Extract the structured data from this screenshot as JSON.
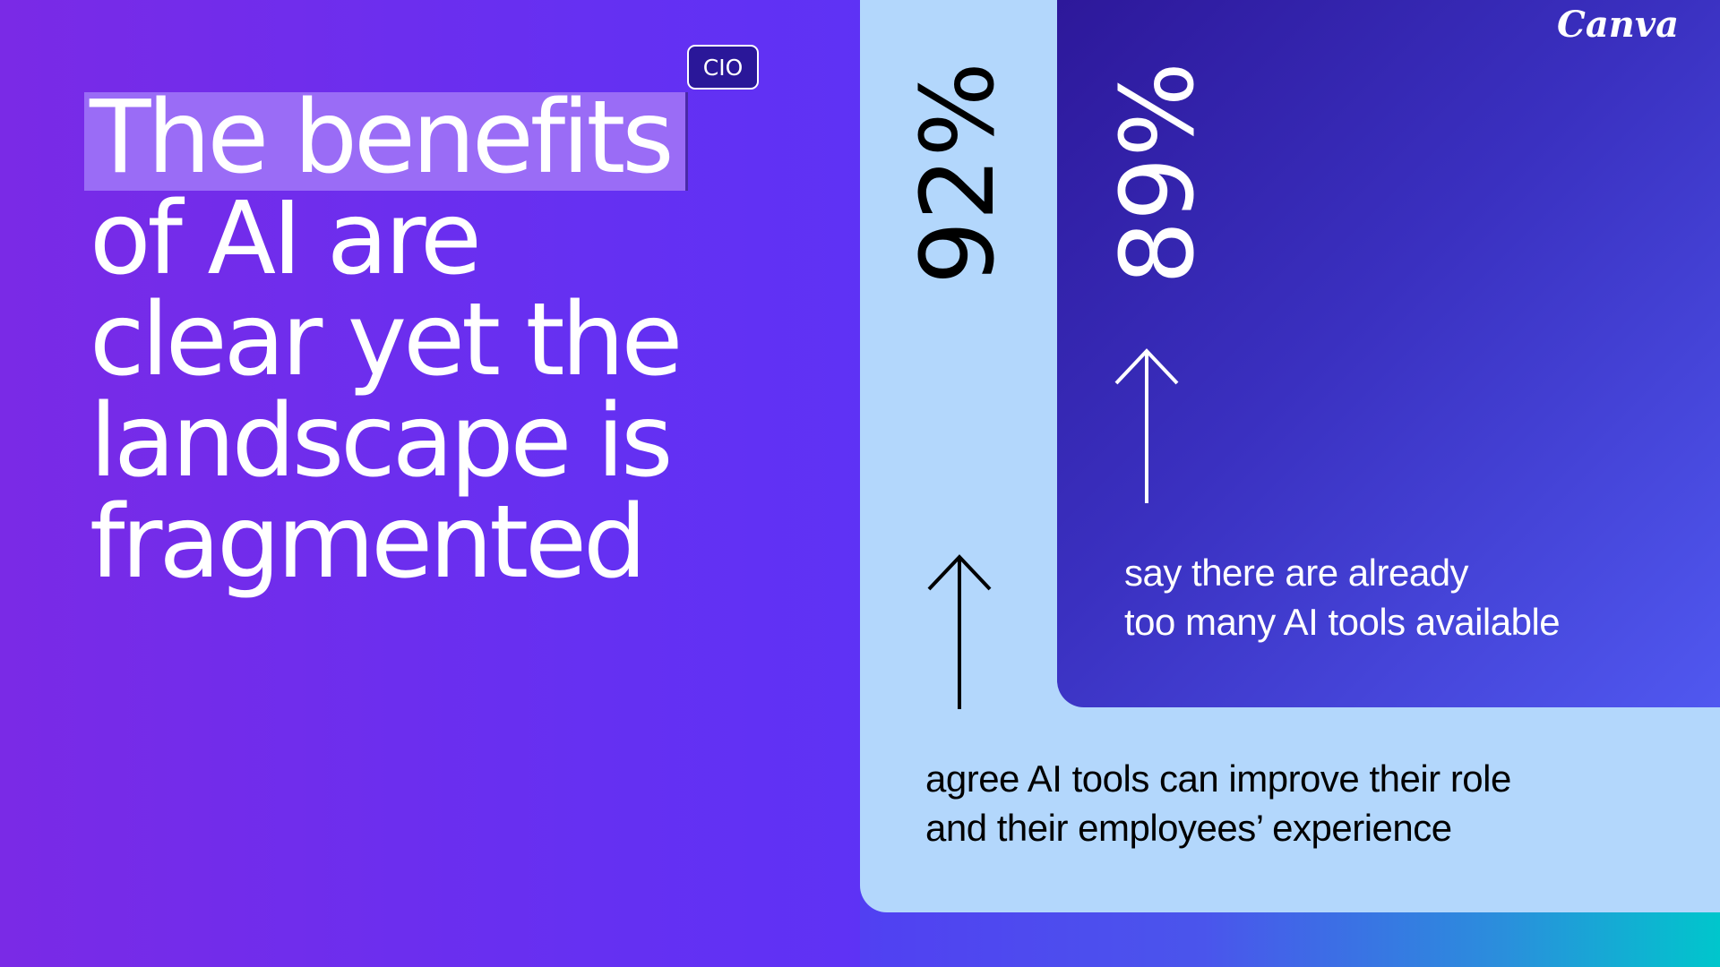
{
  "headline": {
    "lines": [
      "The benefits",
      "of AI are",
      "clear yet the",
      "landscape is",
      "fragmented"
    ]
  },
  "badge": "CIO",
  "logo": "Canva",
  "stats": [
    {
      "value": "92%",
      "text_lines": [
        "agree AI tools can improve their role",
        "and their employees’ experience"
      ]
    },
    {
      "value": "89%",
      "text_lines": [
        "say there are already",
        "too many AI tools available"
      ]
    }
  ],
  "icons": [
    "arrow-up-icon",
    "arrow-up-icon"
  ],
  "colors": {
    "panel_light": "#b3d7fc",
    "panel_dark": "#2d189a",
    "accent_teal": "#00c6cc",
    "highlight": "#9a6cf6"
  }
}
